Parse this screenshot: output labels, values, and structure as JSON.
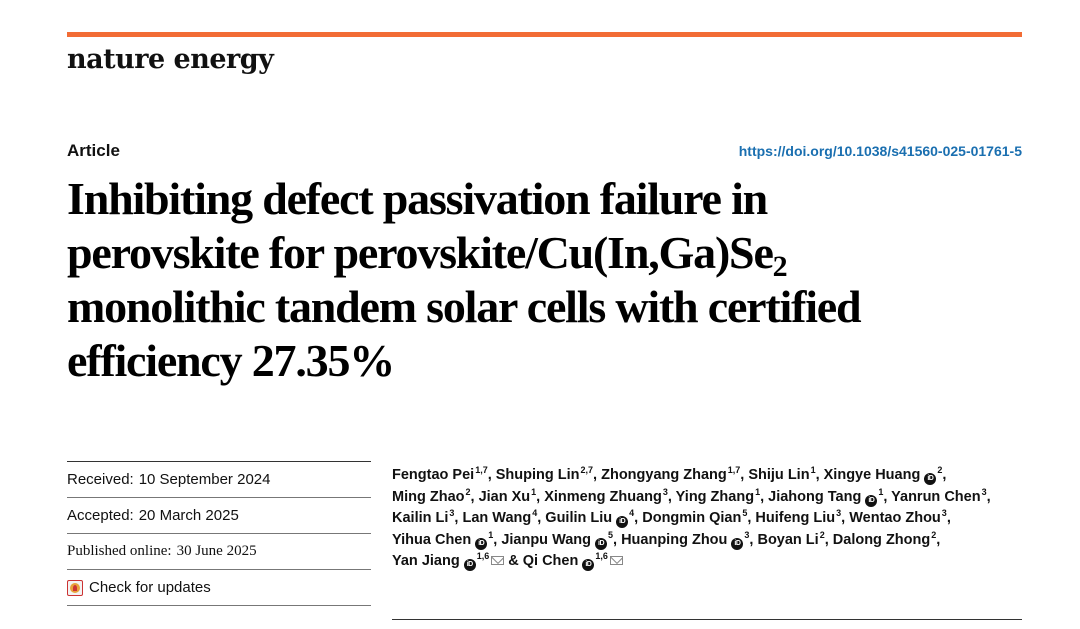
{
  "colors": {
    "accent": "#f26c35",
    "link": "#1a6fb0"
  },
  "journal": "nature energy",
  "article_type": "Article",
  "doi": "https://doi.org/10.1038/s41560-025-01761-5",
  "title": {
    "line1": "Inhibiting defect passivation failure in",
    "line2": "perovskite for perovskite/Cu(In,Ga)Se",
    "line2_sub": "2",
    "line3": "monolithic tandem solar cells with certified",
    "line4": "efficiency 27.35%"
  },
  "dates": {
    "received_label": "Received:",
    "received": "10 September 2024",
    "accepted_label": "Accepted:",
    "accepted": "20 March 2025",
    "published_label": "Published online:",
    "published": "30 June 2025"
  },
  "check_updates": "Check for updates",
  "orcid_label": "iD",
  "authors": [
    {
      "name": "Fengtao Pei",
      "aff": "1,7"
    },
    {
      "name": "Shuping Lin",
      "aff": "2,7"
    },
    {
      "name": "Zhongyang Zhang",
      "aff": "1,7"
    },
    {
      "name": "Shiju Lin",
      "aff": "1"
    },
    {
      "name": "Xingye Huang",
      "aff": "2",
      "orcid": true
    },
    {
      "name": "Ming Zhao",
      "aff": "2"
    },
    {
      "name": "Jian Xu",
      "aff": "1"
    },
    {
      "name": "Xinmeng Zhuang",
      "aff": "3"
    },
    {
      "name": "Ying Zhang",
      "aff": "1"
    },
    {
      "name": "Jiahong Tang",
      "aff": "1",
      "orcid": true
    },
    {
      "name": "Yanrun Chen",
      "aff": "3"
    },
    {
      "name": "Kailin Li",
      "aff": "3"
    },
    {
      "name": "Lan Wang",
      "aff": "4"
    },
    {
      "name": "Guilin Liu",
      "aff": "4",
      "orcid": true
    },
    {
      "name": "Dongmin Qian",
      "aff": "5"
    },
    {
      "name": "Huifeng Liu",
      "aff": "3"
    },
    {
      "name": "Wentao Zhou",
      "aff": "3"
    },
    {
      "name": "Yihua Chen",
      "aff": "1",
      "orcid": true
    },
    {
      "name": "Jianpu Wang",
      "aff": "5",
      "orcid": true
    },
    {
      "name": "Huanping Zhou",
      "aff": "3",
      "orcid": true
    },
    {
      "name": "Boyan Li",
      "aff": "2"
    },
    {
      "name": "Dalong Zhong",
      "aff": "2"
    },
    {
      "name": "Yan Jiang",
      "aff": "1,6",
      "orcid": true,
      "mail": true
    },
    {
      "name": "Qi Chen",
      "aff": "1,6",
      "orcid": true,
      "mail": true,
      "prefix": "& "
    }
  ]
}
